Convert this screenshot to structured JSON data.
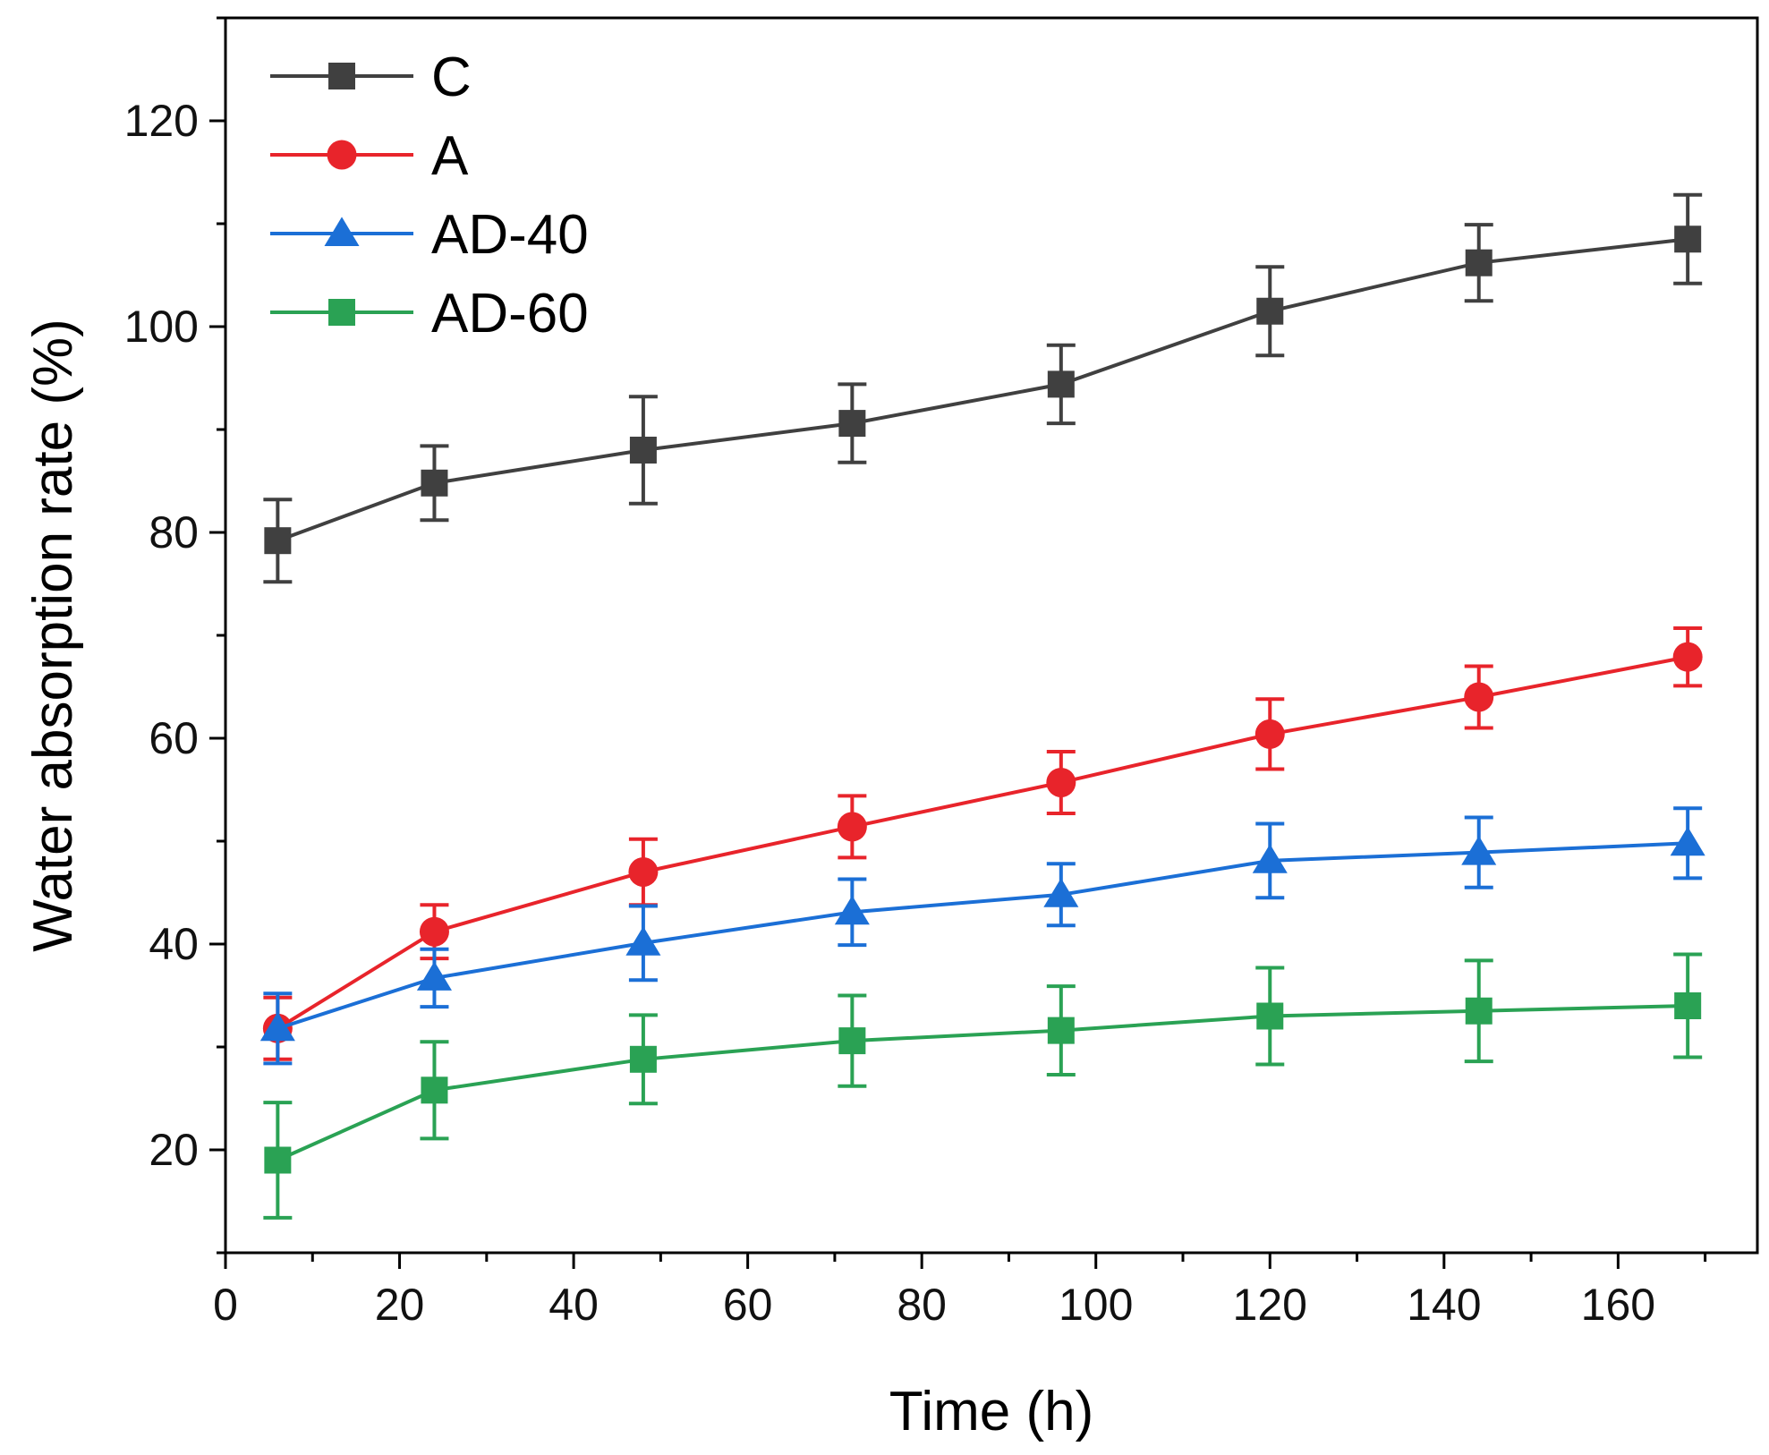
{
  "chart_data": {
    "type": "line",
    "title": "",
    "xlabel": "Time (h)",
    "ylabel": "Water absorption rate (%)",
    "xlim": [
      0,
      176
    ],
    "ylim": [
      10,
      130
    ],
    "xticks": [
      0,
      20,
      40,
      60,
      80,
      100,
      120,
      140,
      160
    ],
    "yticks": [
      20,
      40,
      60,
      80,
      100,
      120
    ],
    "x": [
      6,
      24,
      48,
      72,
      96,
      120,
      144,
      168
    ],
    "legend_position": "top-left",
    "grid": false,
    "series": [
      {
        "name": "C",
        "color": "#404040",
        "marker": "square",
        "values": [
          79.2,
          84.8,
          88.0,
          90.6,
          94.4,
          101.5,
          106.2,
          108.5
        ],
        "errors": [
          4.0,
          3.6,
          5.2,
          3.8,
          3.8,
          4.3,
          3.7,
          4.3
        ]
      },
      {
        "name": "A",
        "color": "#e8242b",
        "marker": "circle",
        "values": [
          31.8,
          41.2,
          47.0,
          51.4,
          55.7,
          60.4,
          64.0,
          67.9
        ],
        "errors": [
          3.0,
          2.6,
          3.2,
          3.0,
          3.0,
          3.4,
          3.0,
          2.8
        ]
      },
      {
        "name": "AD-40",
        "color": "#1b6fd6",
        "marker": "triangle",
        "values": [
          31.8,
          36.7,
          40.1,
          43.1,
          44.8,
          48.1,
          48.9,
          49.8
        ],
        "errors": [
          3.4,
          2.8,
          3.6,
          3.2,
          3.0,
          3.6,
          3.4,
          3.4
        ]
      },
      {
        "name": "AD-60",
        "color": "#2aa254",
        "marker": "square",
        "values": [
          19.0,
          25.8,
          28.8,
          30.6,
          31.6,
          33.0,
          33.5,
          34.0
        ],
        "errors": [
          5.6,
          4.7,
          4.3,
          4.4,
          4.3,
          4.7,
          4.9,
          5.0
        ]
      }
    ]
  }
}
